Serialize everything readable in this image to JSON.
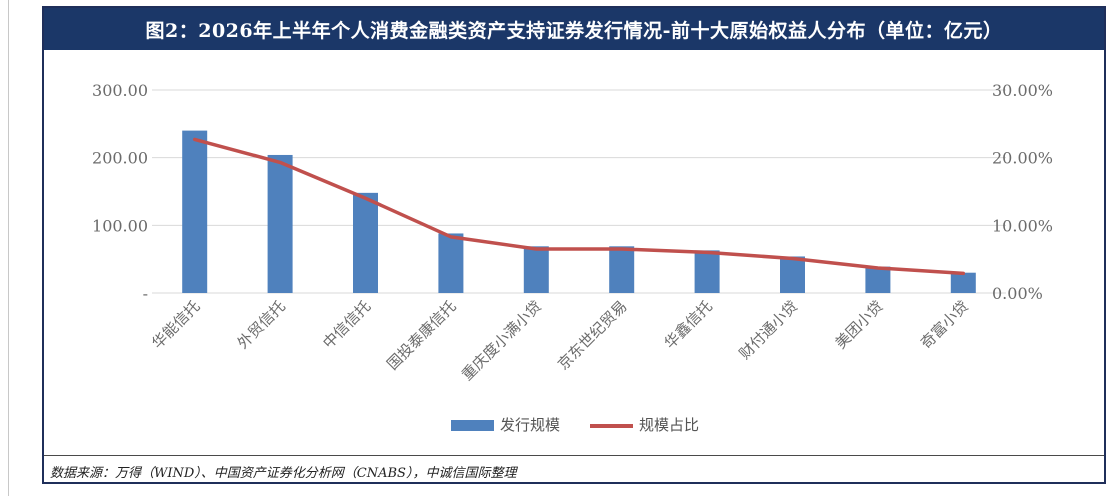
{
  "title": "图2：2026年上半年个人消费金融类资产支持证券发行情况-前十大原始权益人分布（单位：亿元）",
  "source": "数据来源：万得（WIND）、中国资产证券化分析网（CNABS），中诚信国际整理",
  "colors": {
    "bar": "#4f81bd",
    "line": "#c0504d",
    "title_bg": "#1b3768"
  },
  "chart_data": {
    "type": "bar",
    "categories": [
      "华能信托",
      "外贸信托",
      "中信信托",
      "国投泰康信托",
      "重庆度小满小贷",
      "京东世纪贸易",
      "华鑫信托",
      "财付通小贷",
      "美团小贷",
      "奇富小贷"
    ],
    "series": [
      {
        "name": "发行规模",
        "type": "bar",
        "axis": "left",
        "values": [
          240,
          204,
          148,
          88,
          69,
          69,
          63,
          54,
          39,
          30
        ]
      },
      {
        "name": "规模占比",
        "type": "line",
        "axis": "right",
        "values": [
          22.7,
          19.3,
          14.0,
          8.3,
          6.5,
          6.5,
          6.0,
          5.1,
          3.7,
          2.9
        ]
      }
    ],
    "y_left": {
      "ticks": [
        "-",
        "100.00",
        "200.00",
        "300.00"
      ],
      "ylim": [
        0,
        300
      ]
    },
    "y_right": {
      "ticks": [
        "0.00%",
        "10.00%",
        "20.00%",
        "30.00%"
      ],
      "ylim": [
        0,
        30
      ]
    },
    "grid": true,
    "legend_position": "bottom"
  }
}
